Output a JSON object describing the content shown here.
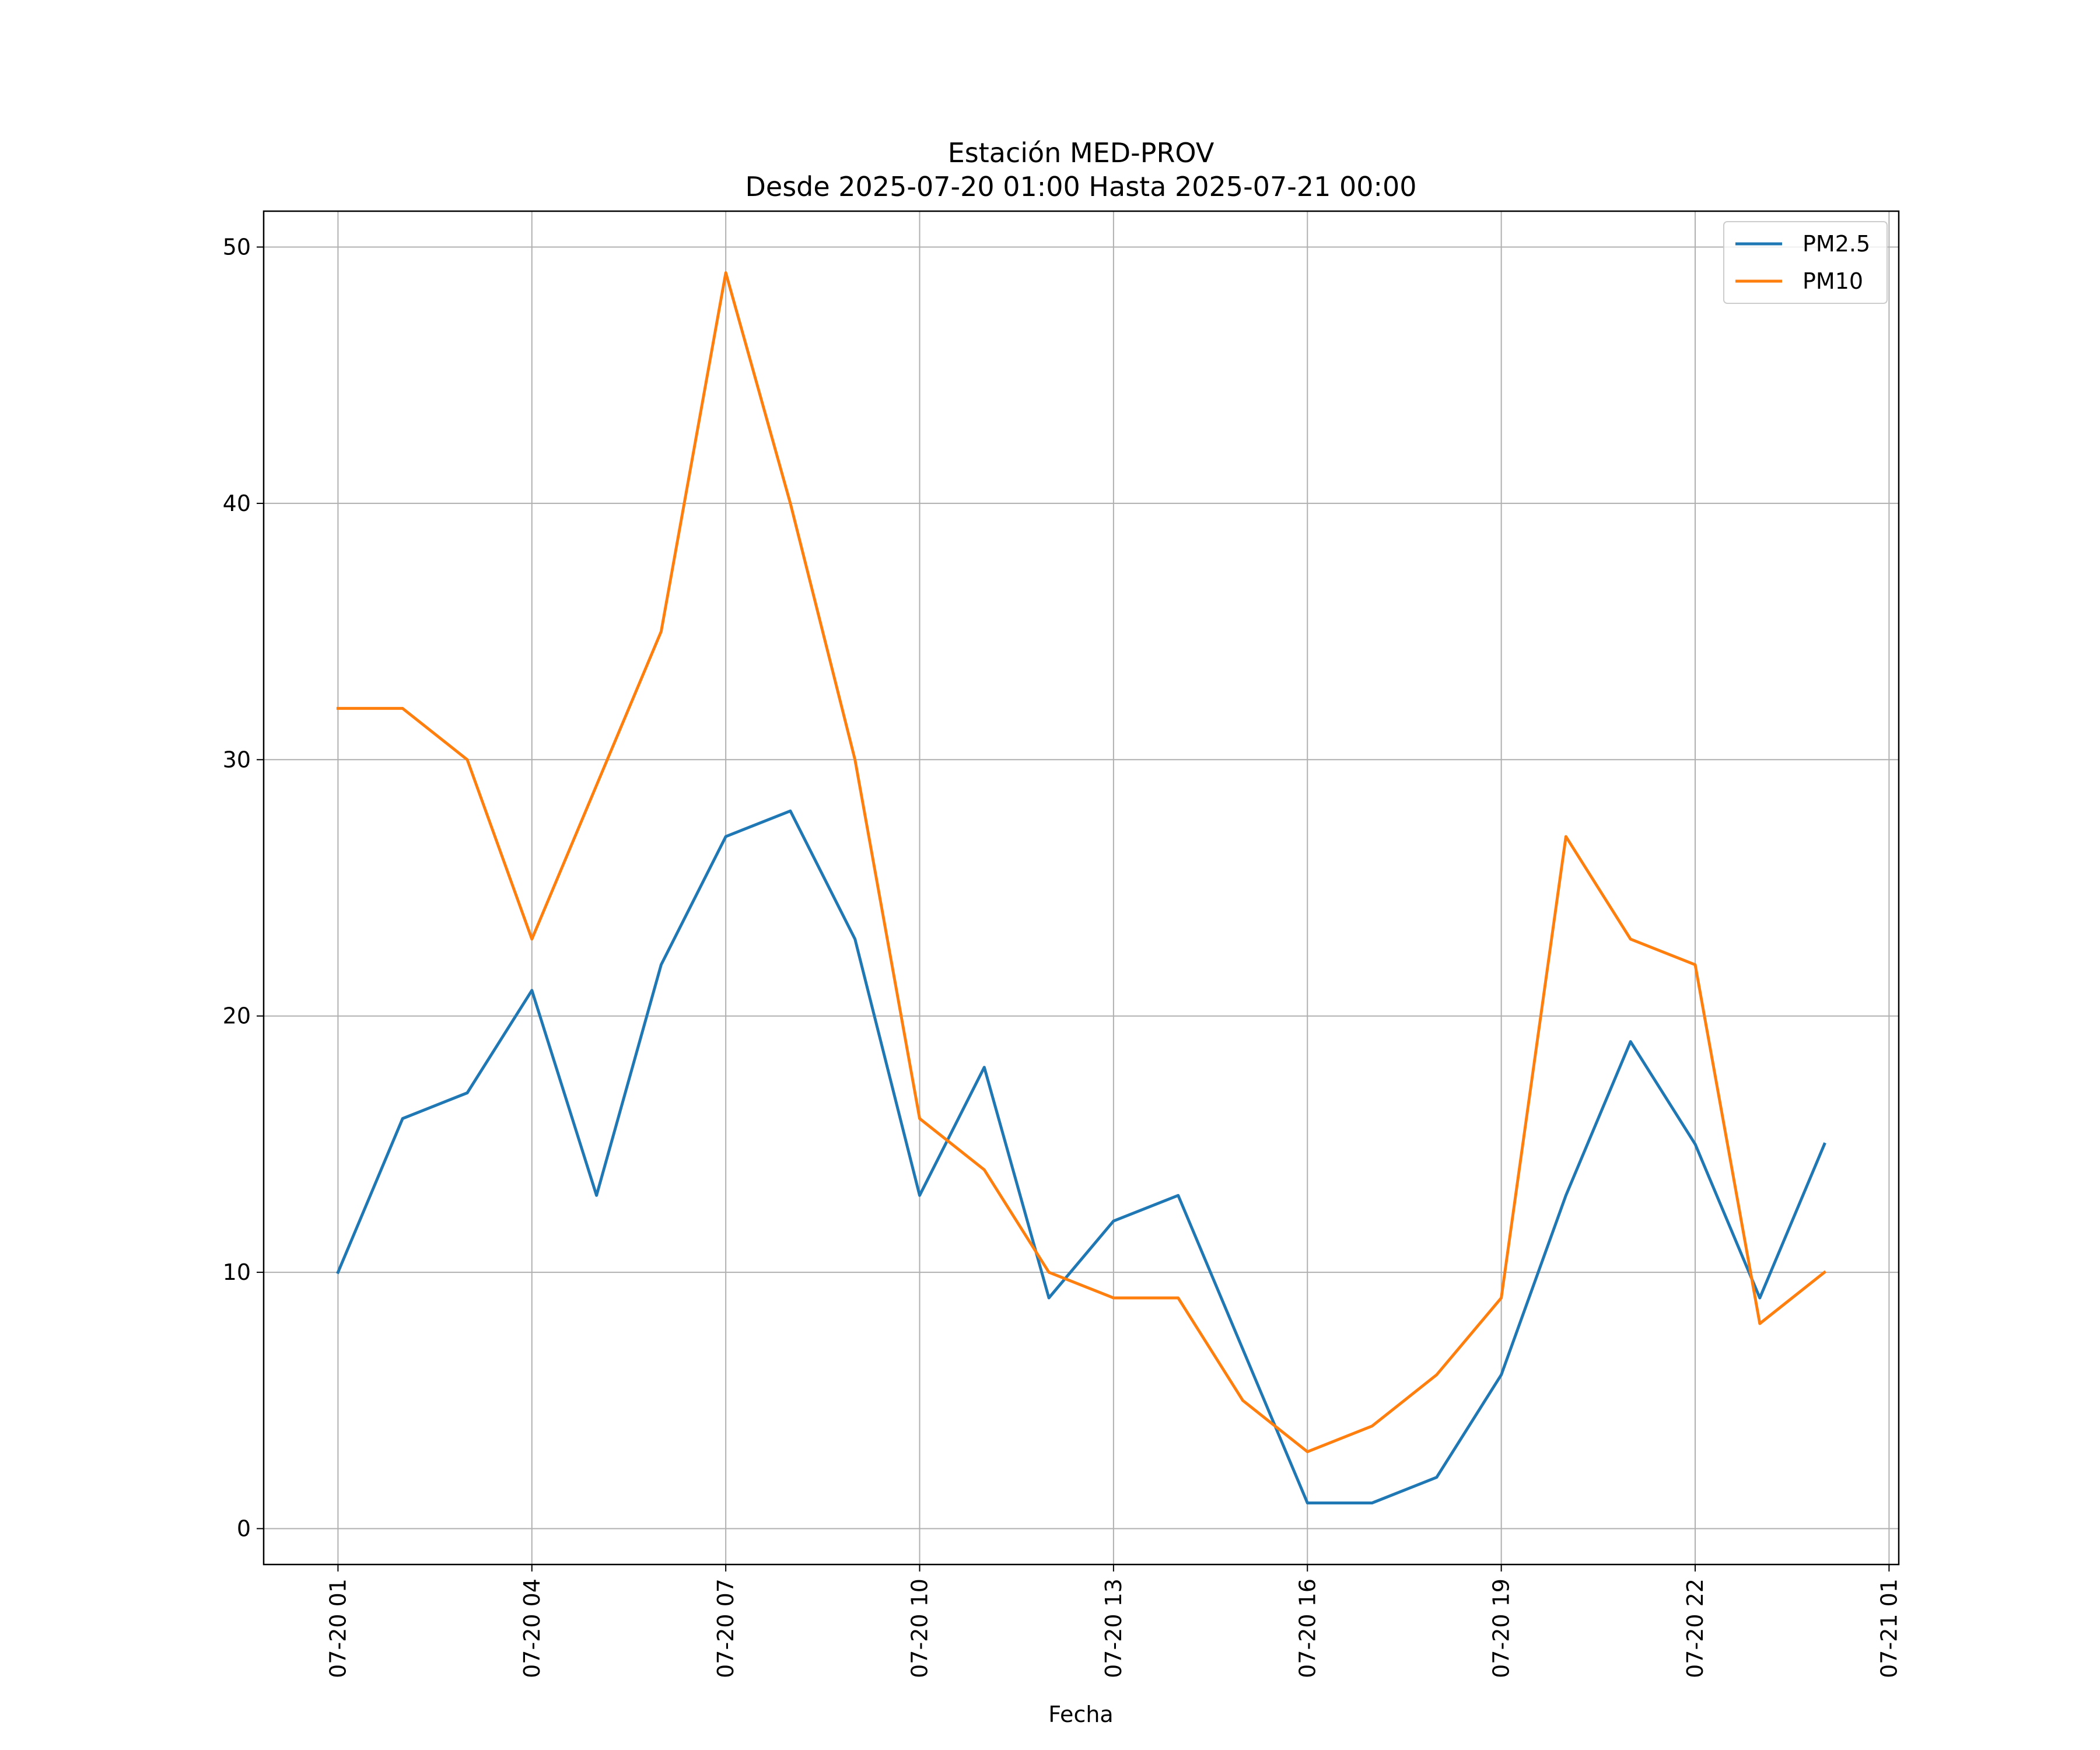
{
  "chart_data": {
    "type": "line",
    "title": "Estación MED-PROV",
    "subtitle": "Desde 2025-07-20 01:00 Hasta 2025-07-21 00:00",
    "xlabel": "Fecha",
    "ylabel": "",
    "ylim": [
      -1.4,
      51.4
    ],
    "yticks": [
      0,
      10,
      20,
      30,
      40,
      50
    ],
    "xlim": [
      "2025-07-19 23:51",
      "2025-07-21 01:09"
    ],
    "xticks": [
      {
        "x": "2025-07-20 01:00",
        "label": "07-20 01"
      },
      {
        "x": "2025-07-20 04:00",
        "label": "07-20 04"
      },
      {
        "x": "2025-07-20 07:00",
        "label": "07-20 07"
      },
      {
        "x": "2025-07-20 10:00",
        "label": "07-20 10"
      },
      {
        "x": "2025-07-20 13:00",
        "label": "07-20 13"
      },
      {
        "x": "2025-07-20 16:00",
        "label": "07-20 16"
      },
      {
        "x": "2025-07-20 19:00",
        "label": "07-20 19"
      },
      {
        "x": "2025-07-20 22:00",
        "label": "07-20 22"
      },
      {
        "x": "2025-07-21 01:00",
        "label": "07-21 01"
      }
    ],
    "x": [
      "2025-07-20 01:00",
      "2025-07-20 02:00",
      "2025-07-20 03:00",
      "2025-07-20 04:00",
      "2025-07-20 05:00",
      "2025-07-20 06:00",
      "2025-07-20 07:00",
      "2025-07-20 08:00",
      "2025-07-20 09:00",
      "2025-07-20 10:00",
      "2025-07-20 11:00",
      "2025-07-20 12:00",
      "2025-07-20 13:00",
      "2025-07-20 14:00",
      "2025-07-20 15:00",
      "2025-07-20 16:00",
      "2025-07-20 17:00",
      "2025-07-20 18:00",
      "2025-07-20 19:00",
      "2025-07-20 20:00",
      "2025-07-20 21:00",
      "2025-07-20 22:00",
      "2025-07-20 23:00",
      "2025-07-21 00:00"
    ],
    "series": [
      {
        "name": "PM2.5",
        "color": "#1f77b4",
        "values": [
          10,
          16,
          17,
          21,
          13,
          22,
          27,
          28,
          23,
          13,
          18,
          9,
          12,
          13,
          7,
          1,
          1,
          2,
          6,
          13,
          19,
          15,
          9,
          15
        ]
      },
      {
        "name": "PM10",
        "color": "#ff7f0e",
        "values": [
          32,
          32,
          30,
          23,
          29,
          35,
          49,
          40,
          30,
          16,
          14,
          10,
          9,
          9,
          5,
          3,
          4,
          6,
          9,
          27,
          23,
          22,
          8,
          10
        ]
      }
    ],
    "grid": true,
    "legend_position": "top-right"
  }
}
